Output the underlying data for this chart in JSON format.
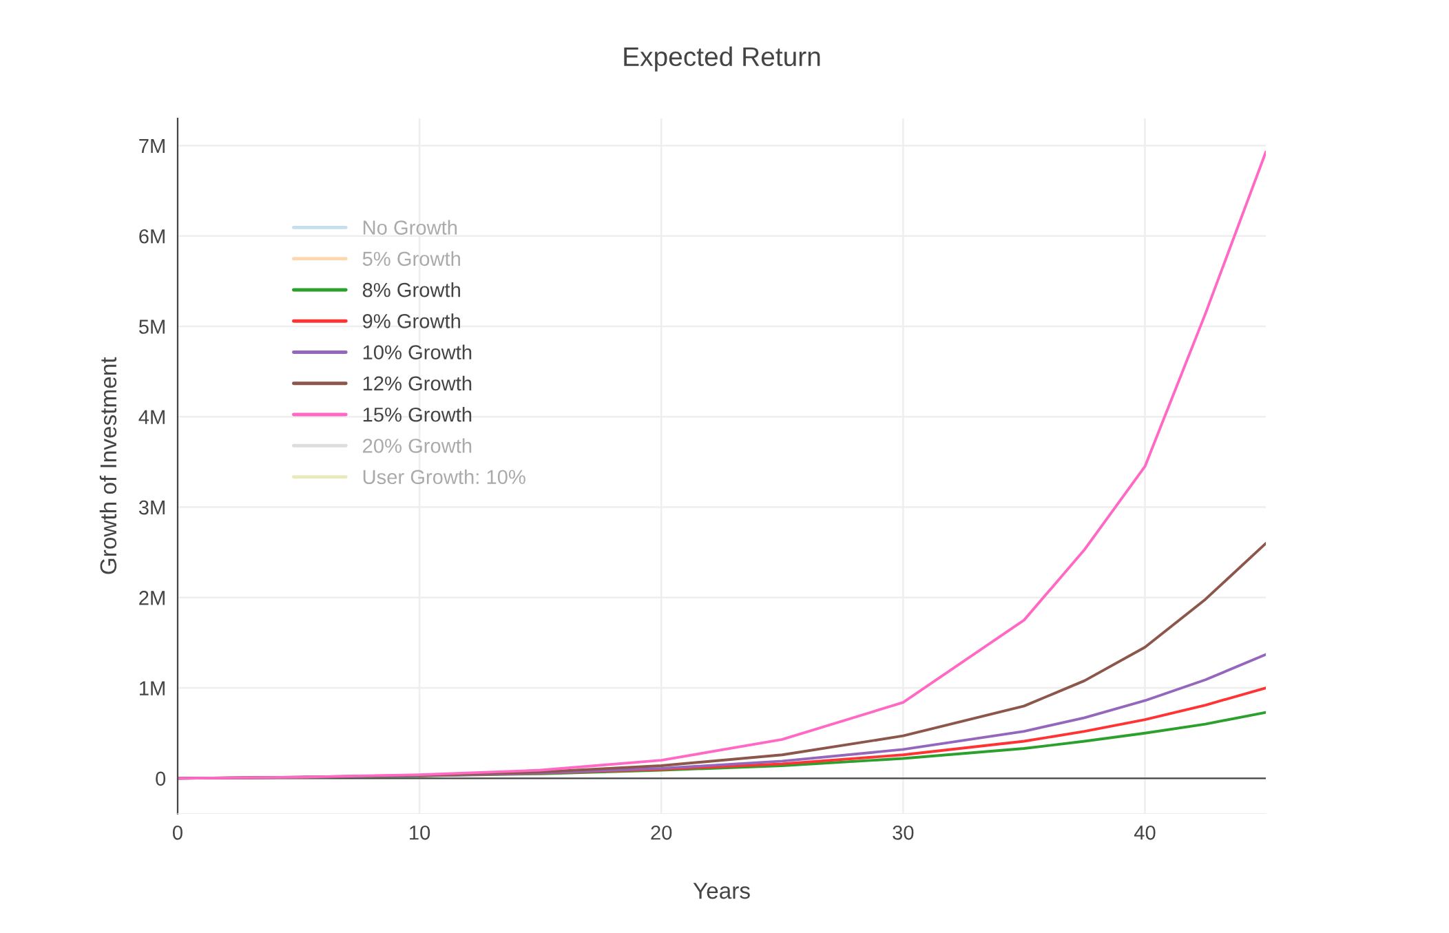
{
  "chart_data": {
    "type": "line",
    "title": "Expected Return",
    "xlabel": "Years",
    "ylabel": "Growth of Investment",
    "x": [
      0,
      5,
      10,
      15,
      20,
      25,
      30,
      35,
      37.5,
      40,
      42.5,
      45
    ],
    "series": [
      {
        "name": "No Growth",
        "color": "#9ecae1",
        "values": [
          null,
          null,
          null,
          null,
          null,
          null,
          null,
          null,
          null,
          null,
          null,
          null
        ]
      },
      {
        "name": "5% Growth",
        "color": "#ffbb78",
        "values": [
          null,
          null,
          null,
          null,
          null,
          null,
          null,
          null,
          null,
          null,
          null,
          null
        ]
      },
      {
        "name": "8% Growth",
        "color": "#2ca02c",
        "values": [
          0,
          11000,
          28000,
          50000,
          90000,
          140000,
          220000,
          330000,
          410000,
          500000,
          600000,
          730000
        ]
      },
      {
        "name": "9% Growth",
        "color": "#ff3333",
        "values": [
          null,
          null,
          29000,
          57000,
          100000,
          160000,
          260000,
          410000,
          520000,
          650000,
          810000,
          1000000
        ]
      },
      {
        "name": "10% Growth",
        "color": "#9467bd",
        "values": [
          0,
          12000,
          30000,
          60000,
          110000,
          190000,
          320000,
          520000,
          670000,
          860000,
          1090000,
          1370000
        ]
      },
      {
        "name": "12% Growth",
        "color": "#8c564b",
        "values": [
          0,
          12000,
          34000,
          70000,
          140000,
          260000,
          470000,
          800000,
          1080000,
          1450000,
          1980000,
          2600000
        ]
      },
      {
        "name": "15% Growth",
        "color": "#ff69c4",
        "values": [
          0,
          13000,
          40000,
          90000,
          200000,
          430000,
          840000,
          1750000,
          2530000,
          3450000,
          5140000,
          6930000
        ]
      },
      {
        "name": "20% Growth",
        "color": "#c7c7c7",
        "values": [
          null,
          null,
          null,
          null,
          null,
          null,
          null,
          null,
          null,
          null,
          null,
          null
        ]
      },
      {
        "name": "User Growth: 10%",
        "color": "#dbdb8d",
        "values": [
          null,
          null,
          null,
          null,
          null,
          null,
          null,
          null,
          null,
          null,
          null,
          null
        ]
      }
    ],
    "xlim": [
      0,
      45
    ],
    "xticks": [
      0,
      10,
      20,
      30,
      40
    ],
    "ylim": [
      -390000,
      7300000
    ],
    "yticks": [
      {
        "value": 0,
        "label": "0"
      },
      {
        "value": 1000000,
        "label": "1M"
      },
      {
        "value": 2000000,
        "label": "2M"
      },
      {
        "value": 3000000,
        "label": "3M"
      },
      {
        "value": 4000000,
        "label": "4M"
      },
      {
        "value": 5000000,
        "label": "5M"
      },
      {
        "value": 6000000,
        "label": "6M"
      },
      {
        "value": 7000000,
        "label": "7M"
      }
    ],
    "ref_lines": [
      {
        "axis": "y",
        "value": 0,
        "color": "#444444"
      }
    ],
    "grid": true,
    "legend": "top left",
    "line_style": "solid"
  }
}
